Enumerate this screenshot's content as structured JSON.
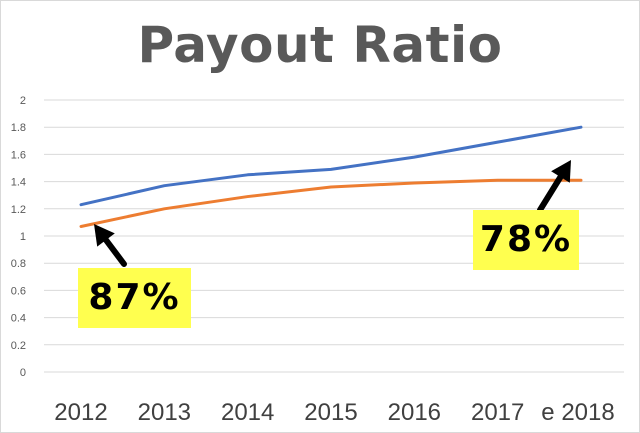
{
  "chart_data": {
    "type": "line",
    "title": "Payout Ratio",
    "categories": [
      "2012",
      "2013",
      "2014",
      "2015",
      "2016",
      "2017",
      "e 2018"
    ],
    "series": [
      {
        "values": [
          1.23,
          1.37,
          1.45,
          1.49,
          1.58,
          1.69,
          1.8
        ],
        "color": "#4472c4"
      },
      {
        "values": [
          1.07,
          1.2,
          1.29,
          1.36,
          1.39,
          1.41,
          1.41
        ],
        "color": "#ed7d31"
      }
    ],
    "ylim": [
      0,
      2
    ],
    "yticks": [
      "0",
      "0.2",
      "0.4",
      "0.6",
      "0.8",
      "1",
      "1.2",
      "1.4",
      "1.6",
      "1.8",
      "2"
    ],
    "grid": true,
    "legend": "none",
    "annotations": [
      {
        "text": "87%",
        "background": "#ffff4f"
      },
      {
        "text": "78%",
        "background": "#ffff4f"
      }
    ]
  }
}
